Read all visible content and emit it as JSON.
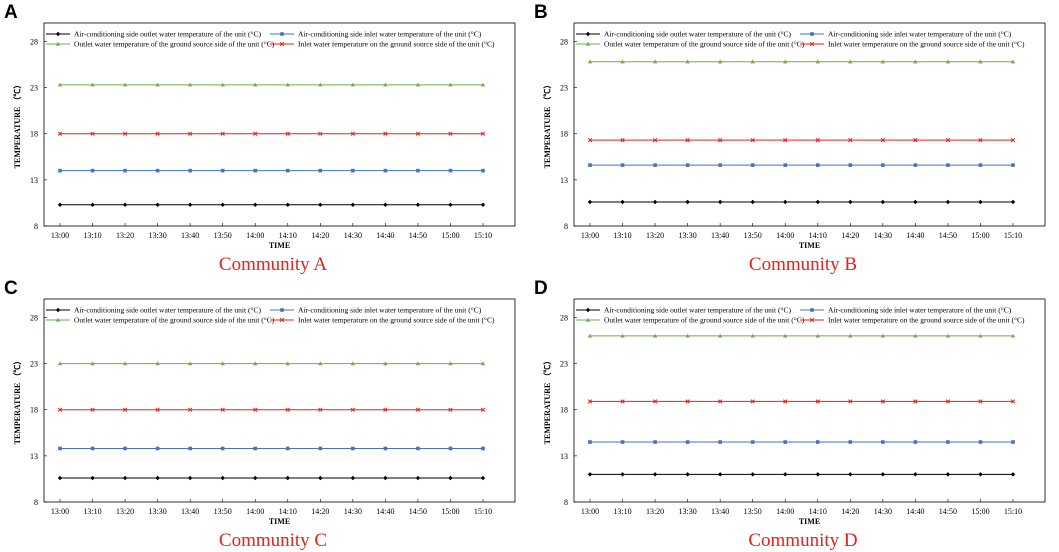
{
  "chart_data": [
    {
      "type": "line",
      "panel_label": "A",
      "caption": "Community A",
      "xlabel": "TIME",
      "ylabel": "TEMPERATURE （℃）",
      "ylim": [
        8,
        30
      ],
      "yticks": [
        8,
        13,
        18,
        23,
        28
      ],
      "categories": [
        "13:00",
        "13:10",
        "13:20",
        "13:30",
        "13:40",
        "13:50",
        "14:00",
        "14:10",
        "14:20",
        "14:30",
        "14:40",
        "14:50",
        "15:00",
        "15:10"
      ],
      "series": [
        {
          "name": "Air-conditioning side outlet water temperature of the unit (°C)",
          "color": "#000000",
          "marker": "diamond",
          "values": [
            10.3,
            10.3,
            10.3,
            10.3,
            10.3,
            10.3,
            10.3,
            10.3,
            10.3,
            10.3,
            10.3,
            10.3,
            10.3,
            10.3
          ]
        },
        {
          "name": "Air-conditioning side inlet water temperature of the unit (°C)",
          "color": "#4472c4",
          "marker": "square",
          "values": [
            14.0,
            14.0,
            14.0,
            14.0,
            14.0,
            14.0,
            14.0,
            14.0,
            14.0,
            14.0,
            14.0,
            14.0,
            14.0,
            14.0
          ]
        },
        {
          "name": "Outlet water temperature of the ground source side of the unit (°C)",
          "color": "#70ad47",
          "marker": "triangle",
          "values": [
            23.3,
            23.3,
            23.3,
            23.3,
            23.3,
            23.3,
            23.3,
            23.3,
            23.3,
            23.3,
            23.3,
            23.3,
            23.3,
            23.3
          ]
        },
        {
          "name": "Inlet water temperature on the ground source side of the unit (°C)",
          "color": "#e8201a",
          "marker": "x",
          "values": [
            18.0,
            18.0,
            18.0,
            18.0,
            18.0,
            18.0,
            18.0,
            18.0,
            18.0,
            18.0,
            18.0,
            18.0,
            18.0,
            18.0
          ]
        }
      ]
    },
    {
      "type": "line",
      "panel_label": "B",
      "caption": "Community B",
      "xlabel": "TIME",
      "ylabel": "TEMPERATURE （℃）",
      "ylim": [
        8,
        30
      ],
      "yticks": [
        8,
        13,
        18,
        23,
        28
      ],
      "categories": [
        "13:00",
        "13:10",
        "13:20",
        "13:30",
        "13:40",
        "13:50",
        "14:00",
        "14:10",
        "14:20",
        "14:30",
        "14:40",
        "14:50",
        "15:00",
        "15:10"
      ],
      "series": [
        {
          "name": "Air-conditioning side outlet water temperature of the unit (°C)",
          "color": "#000000",
          "marker": "diamond",
          "values": [
            10.6,
            10.6,
            10.6,
            10.6,
            10.6,
            10.6,
            10.6,
            10.6,
            10.6,
            10.6,
            10.6,
            10.6,
            10.6,
            10.6
          ]
        },
        {
          "name": "Air-conditioning side inlet water temperature of the unit (°C)",
          "color": "#4472c4",
          "marker": "square",
          "values": [
            14.6,
            14.6,
            14.6,
            14.6,
            14.6,
            14.6,
            14.6,
            14.6,
            14.6,
            14.6,
            14.6,
            14.6,
            14.6,
            14.6
          ]
        },
        {
          "name": "Outlet water temperature of the ground source side of the unit (°C)",
          "color": "#70ad47",
          "marker": "triangle",
          "values": [
            25.8,
            25.8,
            25.8,
            25.8,
            25.8,
            25.8,
            25.8,
            25.8,
            25.8,
            25.8,
            25.8,
            25.8,
            25.8,
            25.8
          ]
        },
        {
          "name": "Inlet water temperature on the ground source side of the unit (°C)",
          "color": "#e8201a",
          "marker": "x",
          "values": [
            17.3,
            17.3,
            17.3,
            17.3,
            17.3,
            17.3,
            17.3,
            17.3,
            17.3,
            17.3,
            17.3,
            17.3,
            17.3,
            17.3
          ]
        }
      ]
    },
    {
      "type": "line",
      "panel_label": "C",
      "caption": "Community C",
      "xlabel": "TIME",
      "ylabel": "TEMPERATURE （℃）",
      "ylim": [
        8,
        30
      ],
      "yticks": [
        8,
        13,
        18,
        23,
        28
      ],
      "categories": [
        "13:00",
        "13:10",
        "13:20",
        "13:30",
        "13:40",
        "13:50",
        "14:00",
        "14:10",
        "14:20",
        "14:30",
        "14:40",
        "14:50",
        "15:00",
        "15:10"
      ],
      "series": [
        {
          "name": "Air-conditioning side outlet water temperature of the unit (°C)",
          "color": "#000000",
          "marker": "diamond",
          "values": [
            10.6,
            10.6,
            10.6,
            10.6,
            10.6,
            10.6,
            10.6,
            10.6,
            10.6,
            10.6,
            10.6,
            10.6,
            10.6,
            10.6
          ]
        },
        {
          "name": "Air-conditioning side inlet water temperature of the unit (°C)",
          "color": "#4472c4",
          "marker": "square",
          "values": [
            13.8,
            13.8,
            13.8,
            13.8,
            13.8,
            13.8,
            13.8,
            13.8,
            13.8,
            13.8,
            13.8,
            13.8,
            13.8,
            13.8
          ]
        },
        {
          "name": "Outlet water temperature of the ground source side of the unit (°C)",
          "color": "#70ad47",
          "marker": "triangle",
          "values": [
            23.0,
            23.0,
            23.0,
            23.0,
            23.0,
            23.0,
            23.0,
            23.0,
            23.0,
            23.0,
            23.0,
            23.0,
            23.0,
            23.0
          ]
        },
        {
          "name": "Inlet water temperature on the ground source side of the unit (°C)",
          "color": "#e8201a",
          "marker": "x",
          "values": [
            18.0,
            18.0,
            18.0,
            18.0,
            18.0,
            18.0,
            18.0,
            18.0,
            18.0,
            18.0,
            18.0,
            18.0,
            18.0,
            18.0
          ]
        }
      ]
    },
    {
      "type": "line",
      "panel_label": "D",
      "caption": "Community D",
      "xlabel": "TIME",
      "ylabel": "TEMPERATURE （℃）",
      "ylim": [
        8,
        30
      ],
      "yticks": [
        8,
        13,
        18,
        23,
        28
      ],
      "categories": [
        "13:00",
        "13:10",
        "13:20",
        "13:30",
        "13:40",
        "13:50",
        "14:00",
        "14:10",
        "14:20",
        "14:30",
        "14:40",
        "14:50",
        "15:00",
        "15:10"
      ],
      "series": [
        {
          "name": "Air-conditioning side outlet water temperature of the unit (°C)",
          "color": "#000000",
          "marker": "diamond",
          "values": [
            11.0,
            11.0,
            11.0,
            11.0,
            11.0,
            11.0,
            11.0,
            11.0,
            11.0,
            11.0,
            11.0,
            11.0,
            11.0,
            11.0
          ]
        },
        {
          "name": "Air-conditioning side inlet water temperature of the unit (°C)",
          "color": "#4472c4",
          "marker": "square",
          "values": [
            14.5,
            14.5,
            14.5,
            14.5,
            14.5,
            14.5,
            14.5,
            14.5,
            14.5,
            14.5,
            14.5,
            14.5,
            14.5,
            14.5
          ]
        },
        {
          "name": "Outlet water temperature of the ground source side of the unit (°C)",
          "color": "#70ad47",
          "marker": "triangle",
          "values": [
            26.0,
            26.0,
            26.0,
            26.0,
            26.0,
            26.0,
            26.0,
            26.0,
            26.0,
            26.0,
            26.0,
            26.0,
            26.0,
            26.0
          ]
        },
        {
          "name": "Inlet water temperature on the ground source side of the unit (°C)",
          "color": "#e8201a",
          "marker": "x",
          "values": [
            18.9,
            18.9,
            18.9,
            18.9,
            18.9,
            18.9,
            18.9,
            18.9,
            18.9,
            18.9,
            18.9,
            18.9,
            18.9,
            18.9
          ]
        }
      ]
    }
  ]
}
